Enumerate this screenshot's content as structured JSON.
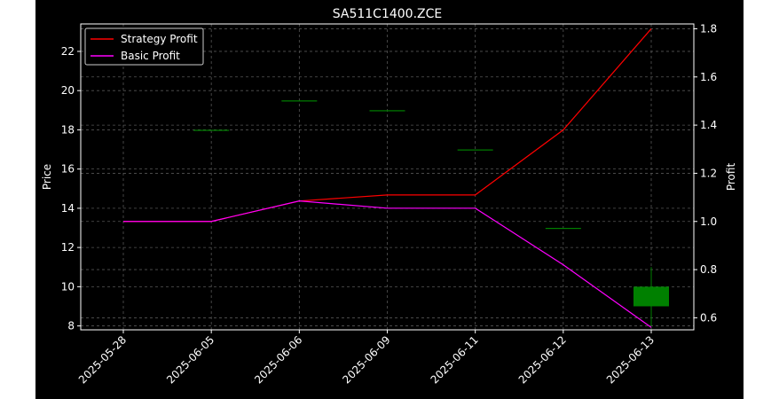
{
  "chart_data": {
    "type": "line",
    "title": "SA511C1400.ZCE",
    "xlabel": "",
    "ylabel": "Price",
    "y2label": "Profit",
    "categories": [
      "2025-05-28",
      "2025-06-05",
      "2025-06-06",
      "2025-06-09",
      "2025-06-11",
      "2025-06-12",
      "2025-06-13"
    ],
    "ylim": [
      7.8,
      23.4
    ],
    "y2lim": [
      0.55,
      1.82
    ],
    "yticks": [
      8,
      10,
      12,
      14,
      16,
      18,
      20,
      22
    ],
    "y2ticks": [
      0.6,
      0.8,
      1.0,
      1.2,
      1.4,
      1.6,
      1.8
    ],
    "grid": true,
    "legend_position": "top-left",
    "candles": [
      {
        "date": "2025-06-05",
        "open": 18.0,
        "close": 18.0,
        "high": 18.0,
        "low": 18.0
      },
      {
        "date": "2025-06-06",
        "open": 19.5,
        "close": 19.5,
        "high": 19.5,
        "low": 19.5
      },
      {
        "date": "2025-06-09",
        "open": 19.0,
        "close": 19.0,
        "high": 19.0,
        "low": 19.0
      },
      {
        "date": "2025-06-11",
        "open": 17.0,
        "close": 17.0,
        "high": 17.0,
        "low": 17.0
      },
      {
        "date": "2025-06-12",
        "open": 13.0,
        "close": 13.0,
        "high": 13.0,
        "low": 13.0
      },
      {
        "date": "2025-06-13",
        "open": 9.0,
        "close": 10.0,
        "high": 11.0,
        "low": 8.0
      }
    ],
    "series": [
      {
        "name": "Strategy Profit",
        "color": "#ff0000",
        "axis": "right",
        "values": [
          1.0,
          1.0,
          1.085,
          1.11,
          1.11,
          1.38,
          1.8
        ]
      },
      {
        "name": "Basic Profit",
        "color": "#ff00ff",
        "axis": "right",
        "values": [
          1.0,
          1.0,
          1.085,
          1.055,
          1.055,
          0.82,
          0.56
        ]
      }
    ],
    "colors": {
      "background": "#000000",
      "axes": "#ffffff",
      "grid": "#555555",
      "candle_up": "#008000",
      "candle_down": "#ff0000"
    }
  }
}
